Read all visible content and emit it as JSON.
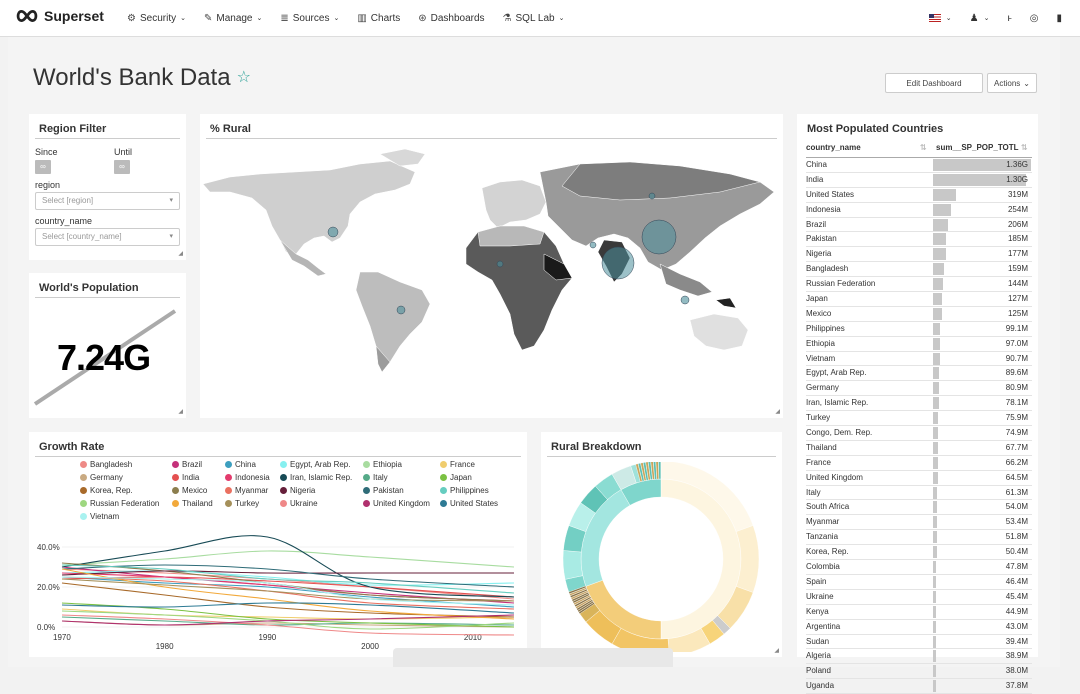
{
  "nav": {
    "brand": "Superset",
    "items": [
      {
        "label": "Security",
        "icon": "gear-icon",
        "glyph": "⚙",
        "caret": true
      },
      {
        "label": "Manage",
        "icon": "wrench-icon",
        "glyph": "✎",
        "caret": true
      },
      {
        "label": "Sources",
        "icon": "database-icon",
        "glyph": "≣",
        "caret": true
      },
      {
        "label": "Charts",
        "icon": "bar-chart-icon",
        "glyph": "▥",
        "caret": false
      },
      {
        "label": "Dashboards",
        "icon": "dashboard-icon",
        "glyph": "⊛",
        "caret": false
      },
      {
        "label": "SQL Lab",
        "icon": "flask-icon",
        "glyph": "⚗",
        "caret": true
      }
    ],
    "right_icons": [
      {
        "name": "language-flag-icon"
      },
      {
        "name": "user-icon",
        "glyph": "♟"
      },
      {
        "name": "version-icon",
        "glyph": "ⱶ"
      },
      {
        "name": "github-icon",
        "glyph": "◎"
      },
      {
        "name": "book-icon",
        "glyph": "▮"
      }
    ]
  },
  "dashboard": {
    "title": "World's Bank Data",
    "edit_label": "Edit Dashboard",
    "actions_label": "Actions"
  },
  "filter": {
    "title": "Region Filter",
    "since_label": "Since",
    "until_label": "Until",
    "since_value": "∞",
    "until_value": "∞",
    "region_label": "region",
    "region_placeholder": "Select [region]",
    "country_label": "country_name",
    "country_placeholder": "Select [country_name]"
  },
  "population": {
    "title": "World's Population",
    "value": "7.24G"
  },
  "rural_map": {
    "title": "% Rural"
  },
  "top_countries": {
    "title": "Most Populated Countries",
    "col_country": "country_name",
    "col_value": "sum__SP_POP_TOTL",
    "rows": [
      {
        "country": "China",
        "value": "1.36G",
        "v": 1364
      },
      {
        "country": "India",
        "value": "1.30G",
        "v": 1295
      },
      {
        "country": "United States",
        "value": "319M",
        "v": 319
      },
      {
        "country": "Indonesia",
        "value": "254M",
        "v": 254
      },
      {
        "country": "Brazil",
        "value": "206M",
        "v": 206
      },
      {
        "country": "Pakistan",
        "value": "185M",
        "v": 185
      },
      {
        "country": "Nigeria",
        "value": "177M",
        "v": 177
      },
      {
        "country": "Bangladesh",
        "value": "159M",
        "v": 159
      },
      {
        "country": "Russian Federation",
        "value": "144M",
        "v": 144
      },
      {
        "country": "Japan",
        "value": "127M",
        "v": 127
      },
      {
        "country": "Mexico",
        "value": "125M",
        "v": 125
      },
      {
        "country": "Philippines",
        "value": "99.1M",
        "v": 99.1
      },
      {
        "country": "Ethiopia",
        "value": "97.0M",
        "v": 97.0
      },
      {
        "country": "Vietnam",
        "value": "90.7M",
        "v": 90.7
      },
      {
        "country": "Egypt, Arab Rep.",
        "value": "89.6M",
        "v": 89.6
      },
      {
        "country": "Germany",
        "value": "80.9M",
        "v": 80.9
      },
      {
        "country": "Iran, Islamic Rep.",
        "value": "78.1M",
        "v": 78.1
      },
      {
        "country": "Turkey",
        "value": "75.9M",
        "v": 75.9
      },
      {
        "country": "Congo, Dem. Rep.",
        "value": "74.9M",
        "v": 74.9
      },
      {
        "country": "Thailand",
        "value": "67.7M",
        "v": 67.7
      },
      {
        "country": "France",
        "value": "66.2M",
        "v": 66.2
      },
      {
        "country": "United Kingdom",
        "value": "64.5M",
        "v": 64.5
      },
      {
        "country": "Italy",
        "value": "61.3M",
        "v": 61.3
      },
      {
        "country": "South Africa",
        "value": "54.0M",
        "v": 54.0
      },
      {
        "country": "Myanmar",
        "value": "53.4M",
        "v": 53.4
      },
      {
        "country": "Tanzania",
        "value": "51.8M",
        "v": 51.8
      },
      {
        "country": "Korea, Rep.",
        "value": "50.4M",
        "v": 50.4
      },
      {
        "country": "Colombia",
        "value": "47.8M",
        "v": 47.8
      },
      {
        "country": "Spain",
        "value": "46.4M",
        "v": 46.4
      },
      {
        "country": "Ukraine",
        "value": "45.4M",
        "v": 45.4
      },
      {
        "country": "Kenya",
        "value": "44.9M",
        "v": 44.9
      },
      {
        "country": "Argentina",
        "value": "43.0M",
        "v": 43.0
      },
      {
        "country": "Sudan",
        "value": "39.4M",
        "v": 39.4
      },
      {
        "country": "Algeria",
        "value": "38.9M",
        "v": 38.9
      },
      {
        "country": "Poland",
        "value": "38.0M",
        "v": 38.0
      },
      {
        "country": "Uganda",
        "value": "37.8M",
        "v": 37.8
      }
    ]
  },
  "growth": {
    "title": "Growth Rate",
    "chart_data": {
      "type": "line",
      "x_ticks": [
        "1970",
        "1980",
        "1990",
        "2000",
        "2010"
      ],
      "y_ticks": [
        "40.0%",
        "20.0%",
        "0.0%"
      ],
      "xlim": [
        1970,
        2014
      ],
      "ylim": [
        -5,
        47
      ],
      "series": [
        {
          "name": "Bangladesh",
          "color": "#ee8a86",
          "values": [
            [
              1970,
              29
            ],
            [
              1980,
              27
            ],
            [
              1990,
              24
            ],
            [
              2000,
              20
            ],
            [
              2014,
              14
            ]
          ]
        },
        {
          "name": "Brazil",
          "color": "#c4317a",
          "values": [
            [
              1970,
              30
            ],
            [
              1980,
              25
            ],
            [
              1990,
              21
            ],
            [
              2000,
              17
            ],
            [
              2014,
              12
            ]
          ]
        },
        {
          "name": "China",
          "color": "#3d9fbf",
          "values": [
            [
              1970,
              25
            ],
            [
              1980,
              22
            ],
            [
              1990,
              20
            ],
            [
              2000,
              15
            ],
            [
              2014,
              10
            ]
          ]
        },
        {
          "name": "Egypt, Arab Rep.",
          "color": "#86f0f0",
          "values": [
            [
              1970,
              27
            ],
            [
              1980,
              28
            ],
            [
              1990,
              25
            ],
            [
              2000,
              21
            ],
            [
              2014,
              22
            ]
          ]
        },
        {
          "name": "Ethiopia",
          "color": "#a8dca0",
          "values": [
            [
              1970,
              31
            ],
            [
              1980,
              34
            ],
            [
              1990,
              38
            ],
            [
              2000,
              35
            ],
            [
              2014,
              30
            ]
          ]
        },
        {
          "name": "France",
          "color": "#f0cd6e",
          "values": [
            [
              1970,
              9
            ],
            [
              1980,
              6
            ],
            [
              1990,
              5
            ],
            [
              2000,
              4
            ],
            [
              2014,
              5
            ]
          ]
        },
        {
          "name": "Germany",
          "color": "#c9aa82",
          "values": [
            [
              1970,
              3
            ],
            [
              1980,
              1
            ],
            [
              1990,
              2
            ],
            [
              2000,
              1
            ],
            [
              2014,
              0
            ]
          ]
        },
        {
          "name": "India",
          "color": "#e45050",
          "values": [
            [
              1970,
              24
            ],
            [
              1980,
              25
            ],
            [
              1990,
              23
            ],
            [
              2000,
              20
            ],
            [
              2014,
              15
            ]
          ]
        },
        {
          "name": "Indonesia",
          "color": "#e33b6d",
          "values": [
            [
              1970,
              27
            ],
            [
              1980,
              25
            ],
            [
              1990,
              21
            ],
            [
              2000,
              16
            ],
            [
              2014,
              13
            ]
          ]
        },
        {
          "name": "Iran, Islamic Rep.",
          "color": "#174a55",
          "values": [
            [
              1970,
              30
            ],
            [
              1980,
              38
            ],
            [
              1990,
              45
            ],
            [
              2000,
              20
            ],
            [
              2014,
              15
            ]
          ]
        },
        {
          "name": "Italy",
          "color": "#55aa88",
          "values": [
            [
              1970,
              5
            ],
            [
              1980,
              3
            ],
            [
              1990,
              1
            ],
            [
              2000,
              2
            ],
            [
              2014,
              1
            ]
          ]
        },
        {
          "name": "Japan",
          "color": "#7bc142",
          "values": [
            [
              1970,
              12
            ],
            [
              1980,
              9
            ],
            [
              1990,
              4
            ],
            [
              2000,
              2
            ],
            [
              2014,
              0
            ]
          ]
        },
        {
          "name": "Korea, Rep.",
          "color": "#a86a2a",
          "values": [
            [
              1970,
              22
            ],
            [
              1980,
              16
            ],
            [
              1990,
              10
            ],
            [
              2000,
              7
            ],
            [
              2014,
              5
            ]
          ]
        },
        {
          "name": "Mexico",
          "color": "#8c7e4e",
          "values": [
            [
              1970,
              32
            ],
            [
              1980,
              28
            ],
            [
              1990,
              22
            ],
            [
              2000,
              16
            ],
            [
              2014,
              13
            ]
          ]
        },
        {
          "name": "Myanmar",
          "color": "#ea7060",
          "values": [
            [
              1970,
              25
            ],
            [
              1980,
              23
            ],
            [
              1990,
              18
            ],
            [
              2000,
              12
            ],
            [
              2014,
              9
            ]
          ]
        },
        {
          "name": "Nigeria",
          "color": "#661f3a",
          "values": [
            [
              1970,
              26
            ],
            [
              1980,
              28
            ],
            [
              1990,
              27
            ],
            [
              2000,
              27
            ],
            [
              2014,
              27
            ]
          ]
        },
        {
          "name": "Pakistan",
          "color": "#2f6c78",
          "values": [
            [
              1970,
              29
            ],
            [
              1980,
              31
            ],
            [
              1990,
              29
            ],
            [
              2000,
              24
            ],
            [
              2014,
              20
            ]
          ]
        },
        {
          "name": "Philippines",
          "color": "#66cdc0",
          "values": [
            [
              1970,
              31
            ],
            [
              1980,
              29
            ],
            [
              1990,
              24
            ],
            [
              2000,
              22
            ],
            [
              2014,
              17
            ]
          ]
        },
        {
          "name": "Russian Federation",
          "color": "#9ed780",
          "values": [
            [
              1970,
              8
            ],
            [
              1980,
              6
            ],
            [
              1990,
              3
            ],
            [
              2000,
              -1
            ],
            [
              2014,
              2
            ]
          ]
        },
        {
          "name": "Thailand",
          "color": "#f2a93b",
          "values": [
            [
              1970,
              29
            ],
            [
              1980,
              20
            ],
            [
              1990,
              14
            ],
            [
              2000,
              8
            ],
            [
              2014,
              4
            ]
          ]
        },
        {
          "name": "Turkey",
          "color": "#a5905a",
          "values": [
            [
              1970,
              24
            ],
            [
              1980,
              21
            ],
            [
              1990,
              18
            ],
            [
              2000,
              14
            ],
            [
              2014,
              13
            ]
          ]
        },
        {
          "name": "Ukraine",
          "color": "#ef8888",
          "values": [
            [
              1970,
              6
            ],
            [
              1980,
              4
            ],
            [
              1990,
              1
            ],
            [
              2000,
              -3
            ],
            [
              2014,
              -4
            ]
          ]
        },
        {
          "name": "United Kingdom",
          "color": "#b0306e",
          "values": [
            [
              1970,
              3
            ],
            [
              1980,
              1
            ],
            [
              1990,
              3
            ],
            [
              2000,
              4
            ],
            [
              2014,
              6
            ]
          ]
        },
        {
          "name": "United States",
          "color": "#2d7a94",
          "values": [
            [
              1970,
              11
            ],
            [
              1980,
              10
            ],
            [
              1990,
              12
            ],
            [
              2000,
              11
            ],
            [
              2014,
              7
            ]
          ]
        },
        {
          "name": "Vietnam",
          "color": "#a9f2f0",
          "values": [
            [
              1970,
              25
            ],
            [
              1980,
              24
            ],
            [
              1990,
              22
            ],
            [
              2000,
              14
            ],
            [
              2014,
              11
            ]
          ]
        }
      ]
    }
  },
  "rural_breakdown": {
    "title": "Rural Breakdown"
  }
}
